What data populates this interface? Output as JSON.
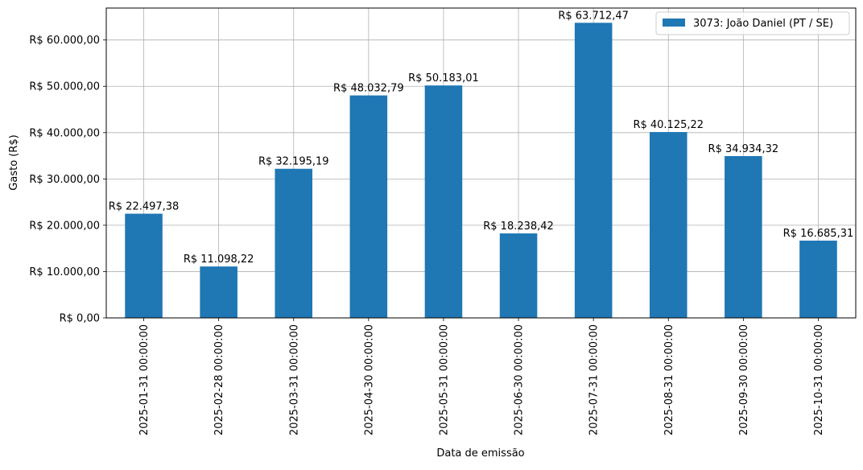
{
  "chart_data": {
    "type": "bar",
    "title": "",
    "xlabel": "Data de emissão",
    "ylabel": "Gasto (R$)",
    "categories": [
      "2025-01-31 00:00:00",
      "2025-02-28 00:00:00",
      "2025-03-31 00:00:00",
      "2025-04-30 00:00:00",
      "2025-05-31 00:00:00",
      "2025-06-30 00:00:00",
      "2025-07-31 00:00:00",
      "2025-08-31 00:00:00",
      "2025-09-30 00:00:00",
      "2025-10-31 00:00:00"
    ],
    "series": [
      {
        "name": "3073: João Daniel (PT / SE)",
        "color": "#1f77b4",
        "values": [
          22497.38,
          11098.22,
          32195.19,
          48032.79,
          50183.01,
          18238.42,
          63712.47,
          40125.22,
          34934.32,
          16685.31
        ],
        "data_labels": [
          "R$ 22.497,38",
          "R$ 11.098,22",
          "R$ 32.195,19",
          "R$ 48.032,79",
          "R$ 50.183,01",
          "R$ 18.238,42",
          "R$ 63.712,47",
          "R$ 40.125,22",
          "R$ 34.934,32",
          "R$ 16.685,31"
        ]
      }
    ],
    "ylim": [
      0,
      66898
    ],
    "yticks": [
      0,
      10000,
      20000,
      30000,
      40000,
      50000,
      60000
    ],
    "ytick_labels": [
      "R$ 0,00",
      "R$ 10.000,00",
      "R$ 20.000,00",
      "R$ 30.000,00",
      "R$ 40.000,00",
      "R$ 50.000,00",
      "R$ 60.000,00"
    ],
    "grid": true,
    "legend_position": "top-right"
  }
}
